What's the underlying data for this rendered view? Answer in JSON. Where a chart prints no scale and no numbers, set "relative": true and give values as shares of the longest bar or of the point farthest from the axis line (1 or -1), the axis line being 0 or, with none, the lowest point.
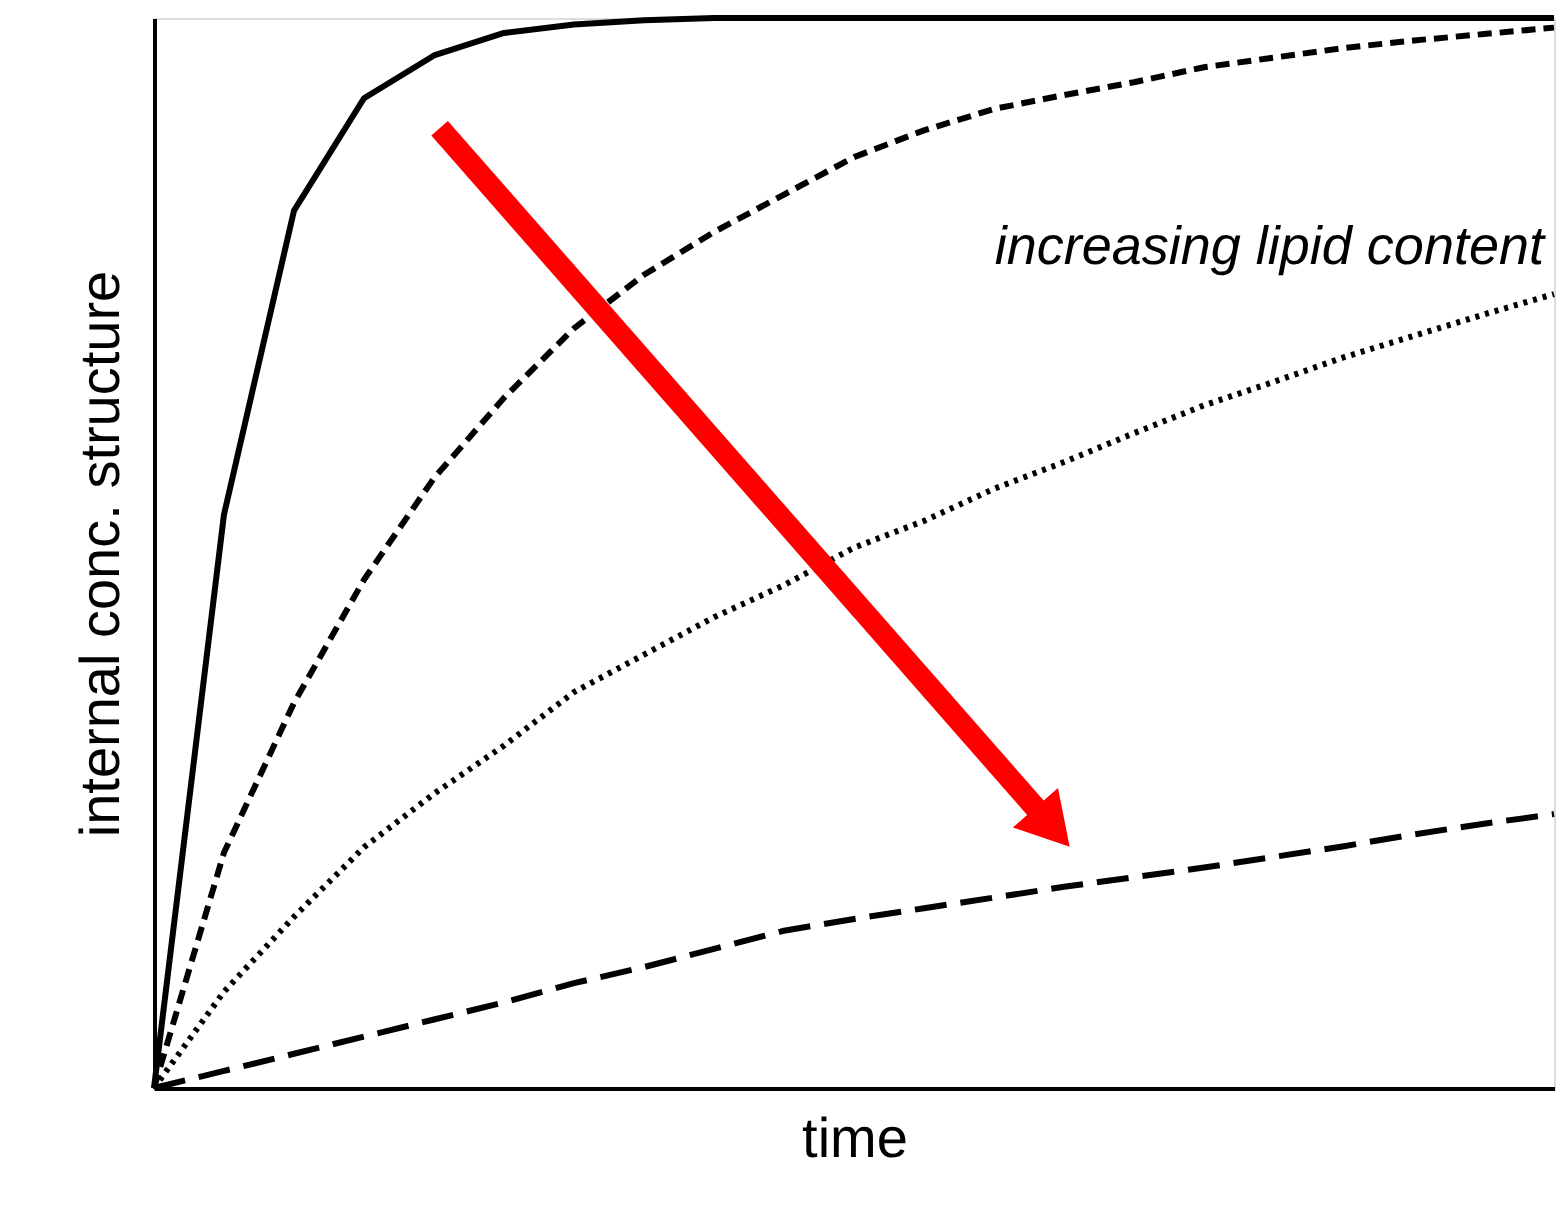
{
  "chart_data": {
    "type": "line",
    "relative": true,
    "xlabel": "time",
    "ylabel": "internal conc. structure",
    "categories": [
      null,
      null,
      null,
      null,
      null,
      null,
      null,
      null,
      null,
      null,
      null,
      null,
      null,
      null,
      null,
      null,
      null,
      null,
      null,
      null,
      null
    ],
    "tick_labels": false,
    "marker": "none",
    "annotations": [
      "increasing lipid content"
    ],
    "series": [
      {
        "color": "#000000",
        "line_style": "solid",
        "values": [
          0,
          0.536,
          0.82,
          0.925,
          0.965,
          0.986,
          0.994,
          0.998,
          1,
          1,
          1,
          1,
          1,
          1,
          1,
          1,
          1,
          1,
          1,
          1,
          1
        ]
      },
      {
        "color": "#000000",
        "line_style": "dashed",
        "values": [
          0,
          0.22,
          0.36,
          0.475,
          0.57,
          0.645,
          0.71,
          0.76,
          0.8,
          0.835,
          0.87,
          0.895,
          0.915,
          0.928,
          0.94,
          0.954,
          0.963,
          0.972,
          0.979,
          0.985,
          0.991
        ]
      },
      {
        "color": "#000000",
        "line_style": "dotted",
        "values": [
          0,
          0.09,
          0.16,
          0.225,
          0.275,
          0.32,
          0.37,
          0.405,
          0.44,
          0.47,
          0.505,
          0.53,
          0.56,
          0.585,
          0.612,
          0.638,
          0.66,
          0.683,
          0.703,
          0.723,
          0.742
        ]
      },
      {
        "color": "#000000",
        "line_style": "dashed",
        "values": [
          0,
          0.016,
          0.032,
          0.048,
          0.064,
          0.08,
          0.098,
          0.113,
          0.13,
          0.147,
          0.158,
          0.168,
          0.178,
          0.188,
          0.197,
          0.206,
          0.216,
          0.226,
          0.237,
          0.247,
          0.256
        ]
      }
    ]
  }
}
